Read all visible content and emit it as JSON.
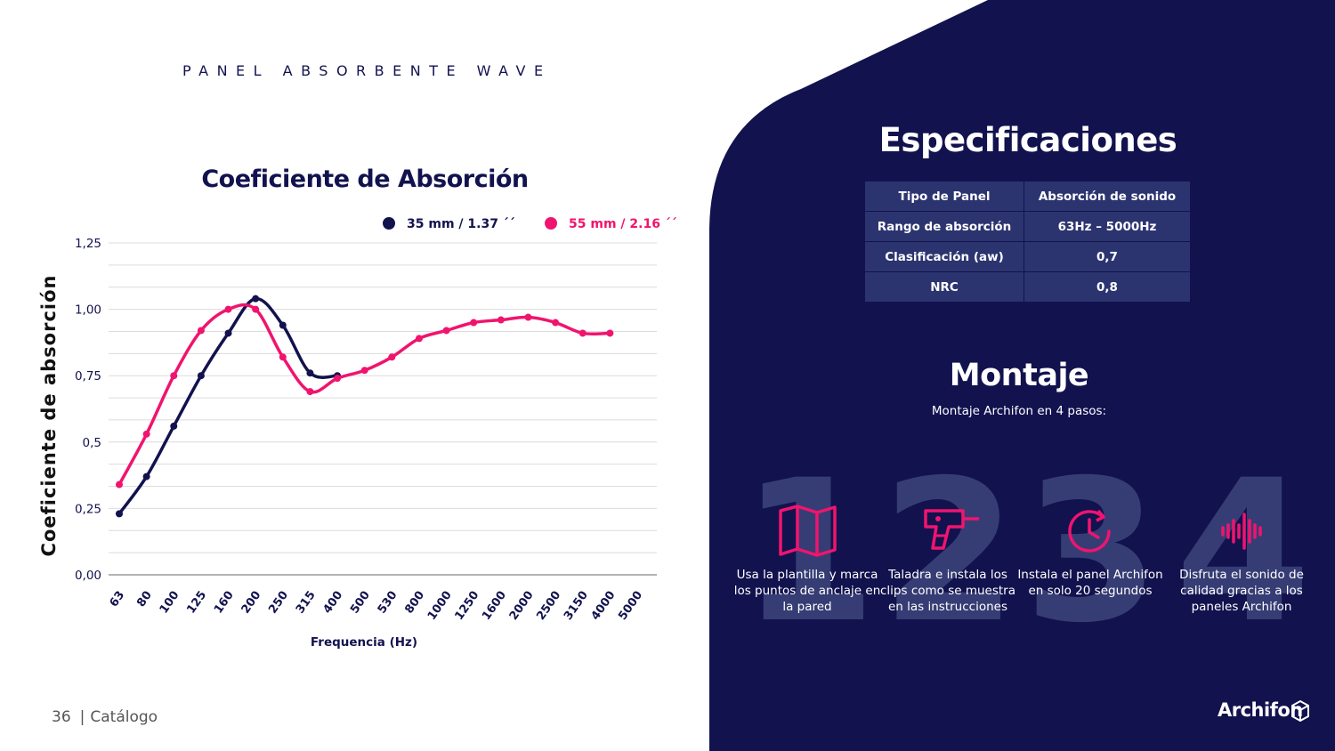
{
  "header": {
    "title": "PANEL ABSORBENTE WAVE"
  },
  "chart_data": {
    "type": "line",
    "title": "Coeficiente de Absorción",
    "xlabel": "Frequencia (Hz)",
    "ylabel": "Coeficiente de absorción",
    "categories": [
      "63",
      "80",
      "100",
      "125",
      "160",
      "200",
      "250",
      "315",
      "400",
      "500",
      "530",
      "800",
      "1000",
      "1250",
      "1600",
      "2000",
      "2500",
      "3150",
      "4000",
      "5000"
    ],
    "y_tick_labels": [
      "0,00",
      "0,25",
      "0,5",
      "0,75",
      "1,00",
      "1,25"
    ],
    "ylim": [
      0,
      1.25
    ],
    "grid": true,
    "legend": "top",
    "series": [
      {
        "name": "35 mm / 1.37 ´´",
        "color": "#12124f",
        "values": [
          0.23,
          0.37,
          0.56,
          0.75,
          0.91,
          1.04,
          0.94,
          0.76,
          0.75,
          null,
          null,
          null,
          null,
          null,
          null,
          null,
          null,
          null,
          null,
          null
        ]
      },
      {
        "name": "55 mm / 2.16 ´´",
        "color": "#f0146e",
        "values": [
          0.34,
          0.53,
          0.75,
          0.92,
          1.0,
          1.0,
          0.82,
          0.69,
          0.74,
          0.77,
          0.82,
          0.89,
          0.92,
          0.95,
          0.96,
          0.97,
          0.95,
          0.91,
          0.91,
          null
        ]
      }
    ]
  },
  "specs": {
    "title": "Especificaciones",
    "headers": [
      "Tipo de Panel",
      "Absorción de sonido"
    ],
    "rows": [
      [
        "Rango de absorción",
        "63Hz – 5000Hz"
      ],
      [
        "Clasificación  (aw)",
        "0,7"
      ],
      [
        "NRC",
        "0,8"
      ]
    ]
  },
  "montaje": {
    "title": "Montaje",
    "subtitle": "Montaje Archifon en 4 pasos:",
    "steps": [
      {
        "number": "1",
        "icon": "map-template-icon",
        "text": "Usa la plantilla y marca los puntos de anclaje en la pared"
      },
      {
        "number": "2",
        "icon": "drill-icon",
        "text": "Taladra e instala los clips como se muestra en las instrucciones"
      },
      {
        "number": "3",
        "icon": "clock-timer-icon",
        "text": "Instala el panel Archifon en solo 20 segundos"
      },
      {
        "number": "4",
        "icon": "sound-wave-icon",
        "text": "Disfruta el sonido de calidad gracias a los paneles Archifon"
      }
    ]
  },
  "footer": {
    "page": "36",
    "section": "Catálogo"
  },
  "brand": {
    "name": "Archifon",
    "navy": "#12124f",
    "accent": "#f0146e"
  }
}
